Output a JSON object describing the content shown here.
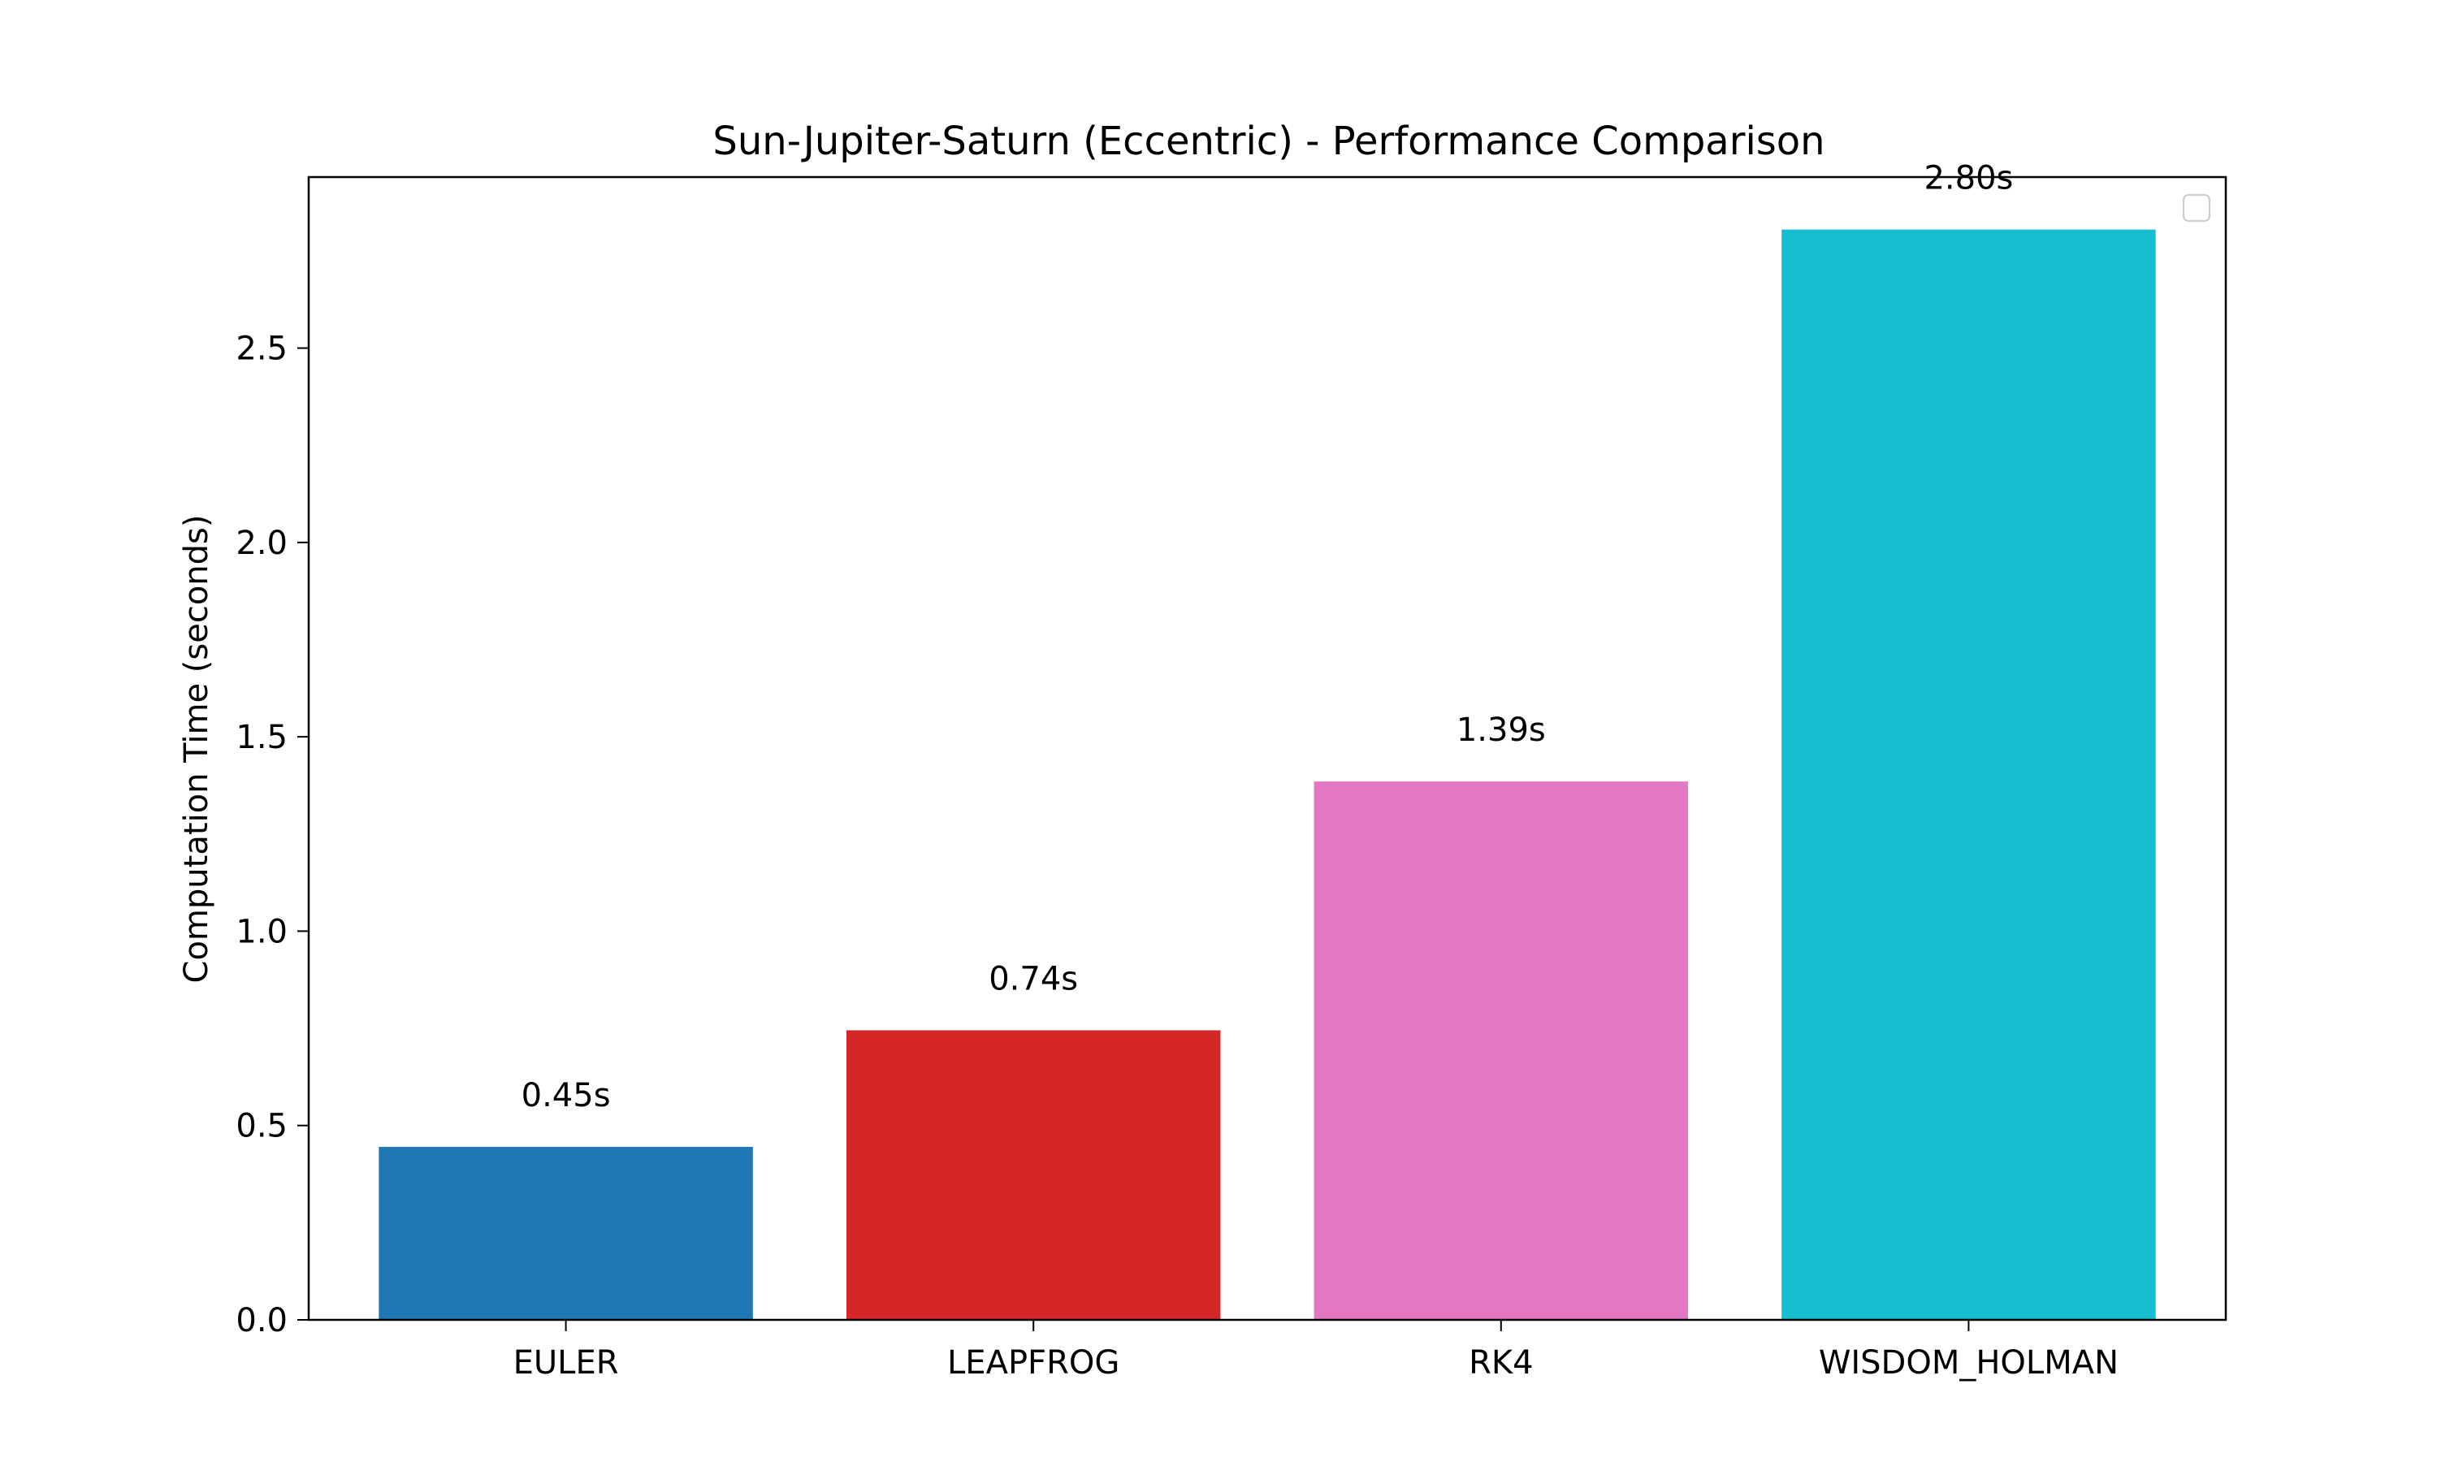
{
  "chart_data": {
    "type": "bar",
    "title": "Sun-Jupiter-Saturn (Eccentric) - Performance Comparison",
    "xlabel": "",
    "ylabel": "Computation Time (seconds)",
    "categories": [
      "EULER",
      "LEAPFROG",
      "RK4",
      "WISDOM_HOLMAN"
    ],
    "values": [
      0.445,
      0.745,
      1.385,
      2.805
    ],
    "data_labels": [
      "0.45s",
      "0.74s",
      "1.39s",
      "2.80s"
    ],
    "colors": [
      "#1f77b4",
      "#d62728",
      "#e377c2",
      "#17becf"
    ],
    "ylim": [
      0,
      2.94
    ],
    "yticks": [
      0.0,
      0.5,
      1.0,
      1.5,
      2.0,
      2.5
    ],
    "ytick_labels": [
      "0.0",
      "0.5",
      "1.0",
      "1.5",
      "2.0",
      "2.5"
    ],
    "grid": false,
    "legend": {
      "placement": "top-right",
      "entries": []
    }
  }
}
